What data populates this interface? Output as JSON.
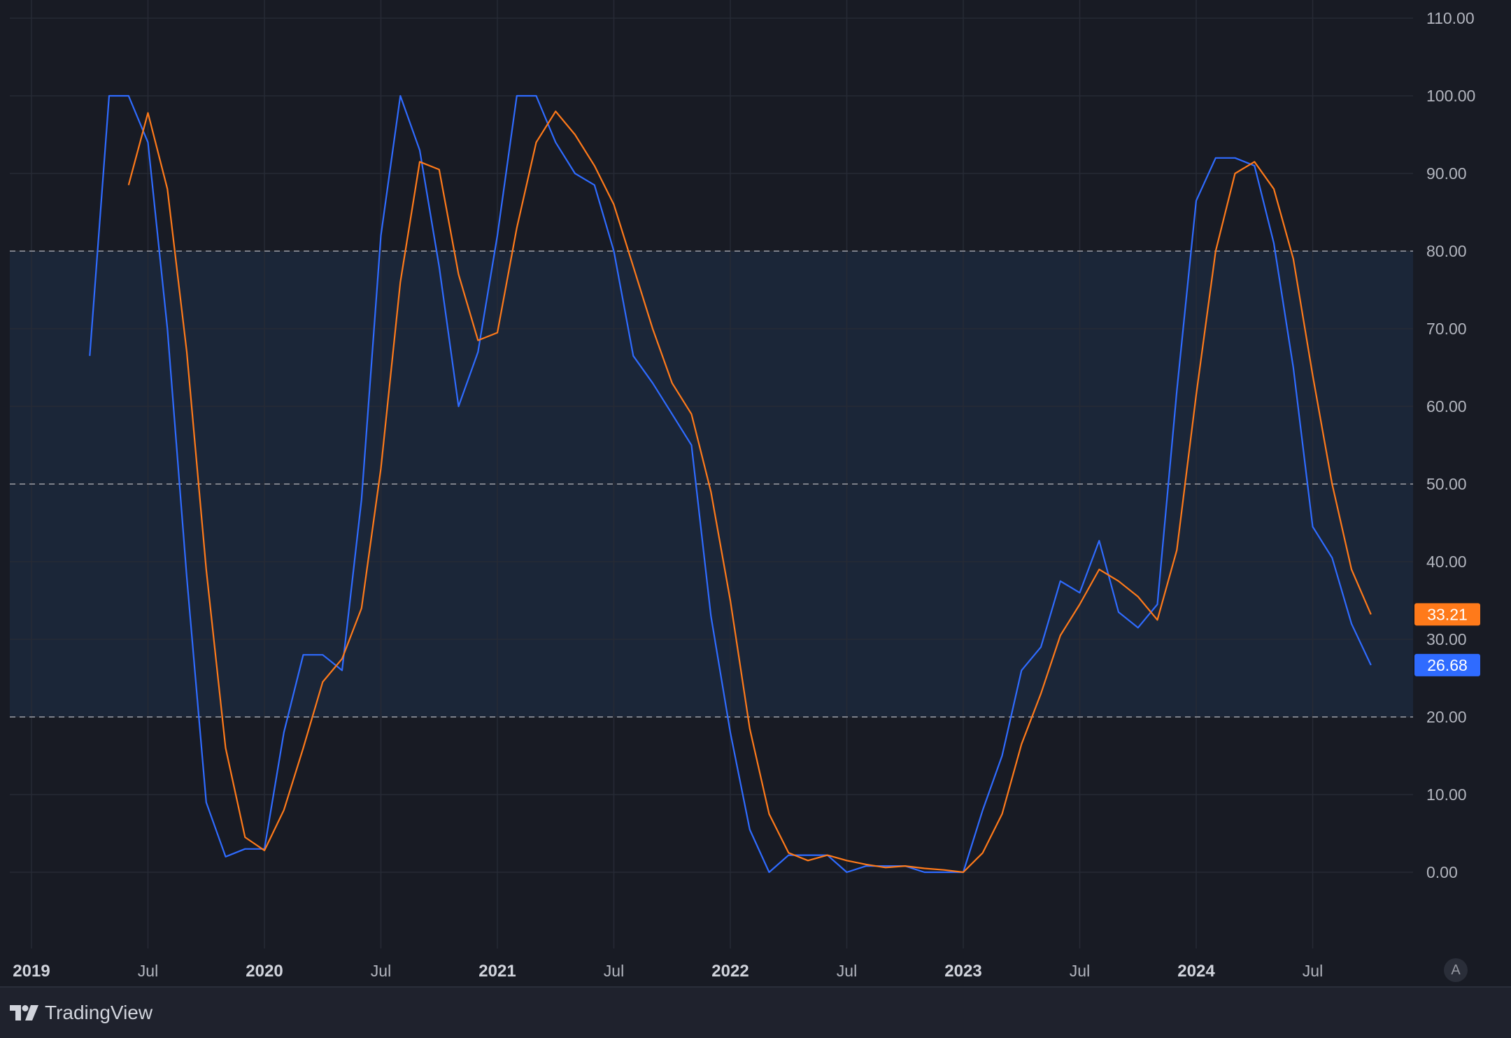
{
  "brand": {
    "name": "TradingView",
    "icon": "tradingview-logo-icon"
  },
  "auto_scale_button": {
    "label": "A"
  },
  "colors": {
    "background": "#181b24",
    "band": "#1b2638",
    "grid": "#262a35",
    "blue": "#2f6bff",
    "orange": "#ff7a1a",
    "dashed": "#8a8d96"
  },
  "chart_data": {
    "type": "line",
    "ylim": [
      -10,
      110
    ],
    "y_ticks": [
      "110.00",
      "100.00",
      "90.00",
      "80.00",
      "70.00",
      "60.00",
      "50.00",
      "40.00",
      "30.00",
      "20.00",
      "10.00",
      "0.00"
    ],
    "x_axis": [
      {
        "label": "2019",
        "year": true
      },
      {
        "label": "Jul",
        "year": false
      },
      {
        "label": "2020",
        "year": true
      },
      {
        "label": "Jul",
        "year": false
      },
      {
        "label": "2021",
        "year": true
      },
      {
        "label": "Jul",
        "year": false
      },
      {
        "label": "2022",
        "year": true
      },
      {
        "label": "Jul",
        "year": false
      },
      {
        "label": "2023",
        "year": true
      },
      {
        "label": "Jul",
        "year": false
      },
      {
        "label": "2024",
        "year": true
      },
      {
        "label": "Jul",
        "year": false
      }
    ],
    "band": [
      20,
      80
    ],
    "dashed_levels": [
      80,
      50,
      20
    ],
    "series": [
      {
        "color": "#2f6bff",
        "last_value": "26.68",
        "points": [
          [
            "2019-04",
            66.5
          ],
          [
            "2019-05",
            100
          ],
          [
            "2019-06",
            100
          ],
          [
            "2019-07",
            94
          ],
          [
            "2019-08",
            70
          ],
          [
            "2019-09",
            38
          ],
          [
            "2019-10",
            9
          ],
          [
            "2019-11",
            2
          ],
          [
            "2019-12",
            3
          ],
          [
            "2020-01",
            3
          ],
          [
            "2020-02",
            18
          ],
          [
            "2020-03",
            28
          ],
          [
            "2020-04",
            28
          ],
          [
            "2020-05",
            26
          ],
          [
            "2020-06",
            48
          ],
          [
            "2020-07",
            82
          ],
          [
            "2020-08",
            100
          ],
          [
            "2020-09",
            93
          ],
          [
            "2020-10",
            78
          ],
          [
            "2020-11",
            60
          ],
          [
            "2020-12",
            67
          ],
          [
            "2021-01",
            82
          ],
          [
            "2021-02",
            100
          ],
          [
            "2021-03",
            100
          ],
          [
            "2021-04",
            94
          ],
          [
            "2021-05",
            90
          ],
          [
            "2021-06",
            88.5
          ],
          [
            "2021-07",
            80
          ],
          [
            "2021-08",
            66.5
          ],
          [
            "2021-09",
            63
          ],
          [
            "2021-10",
            59
          ],
          [
            "2021-11",
            55
          ],
          [
            "2021-12",
            33
          ],
          [
            "2022-01",
            18
          ],
          [
            "2022-02",
            5.5
          ],
          [
            "2022-03",
            0
          ],
          [
            "2022-04",
            2.2
          ],
          [
            "2022-05",
            2.2
          ],
          [
            "2022-06",
            2.2
          ],
          [
            "2022-07",
            0
          ],
          [
            "2022-08",
            0.8
          ],
          [
            "2022-09",
            0.8
          ],
          [
            "2022-10",
            0.8
          ],
          [
            "2022-11",
            0
          ],
          [
            "2022-12",
            0
          ],
          [
            "2023-01",
            0
          ],
          [
            "2023-02",
            8
          ],
          [
            "2023-03",
            15
          ],
          [
            "2023-04",
            26
          ],
          [
            "2023-05",
            29
          ],
          [
            "2023-06",
            37.5
          ],
          [
            "2023-07",
            36
          ],
          [
            "2023-08",
            42.7
          ],
          [
            "2023-09",
            33.5
          ],
          [
            "2023-10",
            31.5
          ],
          [
            "2023-11",
            34.5
          ],
          [
            "2023-12",
            62
          ],
          [
            "2024-01",
            86.5
          ],
          [
            "2024-02",
            92
          ],
          [
            "2024-03",
            92
          ],
          [
            "2024-04",
            91
          ],
          [
            "2024-05",
            81
          ],
          [
            "2024-06",
            65
          ],
          [
            "2024-07",
            44.5
          ],
          [
            "2024-08",
            40.5
          ],
          [
            "2024-09",
            32
          ],
          [
            "2024-10",
            26.68
          ]
        ]
      },
      {
        "color": "#ff7a1a",
        "last_value": "33.21",
        "points": [
          [
            "2019-06",
            88.5
          ],
          [
            "2019-07",
            97.8
          ],
          [
            "2019-08",
            88
          ],
          [
            "2019-09",
            67
          ],
          [
            "2019-10",
            39
          ],
          [
            "2019-11",
            16
          ],
          [
            "2019-12",
            4.5
          ],
          [
            "2020-01",
            2.8
          ],
          [
            "2020-02",
            8
          ],
          [
            "2020-03",
            16
          ],
          [
            "2020-04",
            24.5
          ],
          [
            "2020-05",
            27.5
          ],
          [
            "2020-06",
            34
          ],
          [
            "2020-07",
            52
          ],
          [
            "2020-08",
            76
          ],
          [
            "2020-09",
            91.5
          ],
          [
            "2020-10",
            90.5
          ],
          [
            "2020-11",
            77
          ],
          [
            "2020-12",
            68.5
          ],
          [
            "2021-01",
            69.5
          ],
          [
            "2021-02",
            83
          ],
          [
            "2021-03",
            94
          ],
          [
            "2021-04",
            98
          ],
          [
            "2021-05",
            95
          ],
          [
            "2021-06",
            91
          ],
          [
            "2021-07",
            86
          ],
          [
            "2021-08",
            78
          ],
          [
            "2021-09",
            70
          ],
          [
            "2021-10",
            63
          ],
          [
            "2021-11",
            59
          ],
          [
            "2021-12",
            49
          ],
          [
            "2022-01",
            35
          ],
          [
            "2022-02",
            18.5
          ],
          [
            "2022-03",
            7.5
          ],
          [
            "2022-04",
            2.5
          ],
          [
            "2022-05",
            1.5
          ],
          [
            "2022-06",
            2.2
          ],
          [
            "2022-07",
            1.5
          ],
          [
            "2022-08",
            1
          ],
          [
            "2022-09",
            0.6
          ],
          [
            "2022-10",
            0.8
          ],
          [
            "2022-11",
            0.5
          ],
          [
            "2022-12",
            0.3
          ],
          [
            "2023-01",
            0
          ],
          [
            "2023-02",
            2.5
          ],
          [
            "2023-03",
            7.5
          ],
          [
            "2023-04",
            16.5
          ],
          [
            "2023-05",
            23
          ],
          [
            "2023-06",
            30.5
          ],
          [
            "2023-07",
            34.5
          ],
          [
            "2023-08",
            39
          ],
          [
            "2023-09",
            37.5
          ],
          [
            "2023-10",
            35.5
          ],
          [
            "2023-11",
            32.5
          ],
          [
            "2023-12",
            41.5
          ],
          [
            "2024-01",
            61.5
          ],
          [
            "2024-02",
            80
          ],
          [
            "2024-03",
            90
          ],
          [
            "2024-04",
            91.5
          ],
          [
            "2024-05",
            88
          ],
          [
            "2024-06",
            79
          ],
          [
            "2024-07",
            64
          ],
          [
            "2024-08",
            50
          ],
          [
            "2024-09",
            39
          ],
          [
            "2024-10",
            33.21
          ]
        ]
      }
    ]
  }
}
